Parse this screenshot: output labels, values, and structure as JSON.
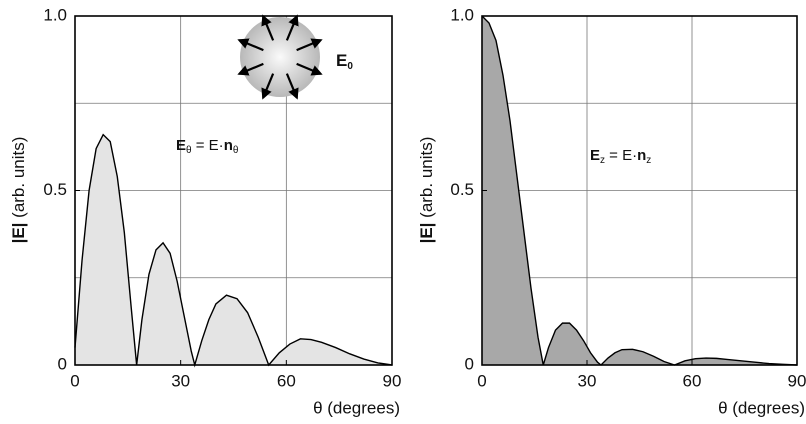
{
  "chart_data": [
    {
      "type": "area",
      "y_label": [
        "|E|",
        " (arb. units)"
      ],
      "x_label": "θ (degrees)",
      "annotation": [
        "E",
        "θ",
        " = E·",
        "n",
        "θ"
      ],
      "inset_label": [
        "E",
        "0"
      ],
      "x": [
        0,
        2,
        4,
        6,
        8,
        10,
        12,
        14,
        16,
        17.5,
        19,
        21,
        23,
        25,
        27,
        29,
        31,
        33,
        34,
        36,
        38,
        40,
        43,
        46,
        49,
        52,
        55,
        58,
        61,
        64,
        67,
        70,
        74,
        78,
        82,
        86,
        90
      ],
      "series": [
        {
          "color": "#e4e4e4",
          "values": [
            0.05,
            0.3,
            0.5,
            0.62,
            0.66,
            0.64,
            0.54,
            0.38,
            0.16,
            0,
            0.13,
            0.26,
            0.33,
            0.35,
            0.32,
            0.24,
            0.14,
            0.04,
            0,
            0.07,
            0.13,
            0.175,
            0.2,
            0.19,
            0.15,
            0.08,
            0,
            0.035,
            0.06,
            0.075,
            0.073,
            0.065,
            0.05,
            0.032,
            0.017,
            0.006,
            0
          ]
        }
      ],
      "xlim": [
        0,
        90
      ],
      "xticks": [
        0,
        30,
        60,
        90
      ],
      "ylim": [
        0,
        1
      ],
      "yticks": [
        0,
        0.5,
        {
          "value": 1,
          "label": "1.0"
        }
      ],
      "ygrid": [
        0.25,
        0.5,
        0.75
      ],
      "xgrid": [
        30,
        60
      ]
    },
    {
      "type": "area",
      "y_label": [
        "|E|",
        " (arb. units)"
      ],
      "x_label": "θ (degrees)",
      "annotation": [
        "E",
        "z",
        " = E·",
        "n",
        "z"
      ],
      "x": [
        0,
        2,
        4,
        6,
        8,
        10,
        12,
        14,
        16,
        17.5,
        19,
        21,
        23,
        25,
        27,
        29,
        31,
        33,
        34,
        36,
        38,
        40,
        43,
        46,
        49,
        52,
        55,
        58,
        61,
        64,
        67,
        70,
        74,
        78,
        82,
        86,
        90
      ],
      "series": [
        {
          "color": "#a8a8a8",
          "values": [
            1.0,
            0.98,
            0.93,
            0.83,
            0.7,
            0.54,
            0.38,
            0.22,
            0.08,
            0,
            0.05,
            0.1,
            0.12,
            0.12,
            0.1,
            0.07,
            0.035,
            0.008,
            0,
            0.02,
            0.035,
            0.044,
            0.045,
            0.038,
            0.025,
            0.01,
            0,
            0.012,
            0.018,
            0.02,
            0.019,
            0.016,
            0.012,
            0.008,
            0.004,
            0.002,
            0
          ]
        }
      ],
      "xlim": [
        0,
        90
      ],
      "xticks": [
        0,
        30,
        60,
        90
      ],
      "ylim": [
        0,
        1
      ],
      "yticks": [
        0,
        0.5,
        {
          "value": 1,
          "label": "1.0"
        }
      ],
      "ygrid": [
        0.25,
        0.5,
        0.75
      ],
      "xgrid": [
        30,
        60
      ]
    }
  ]
}
